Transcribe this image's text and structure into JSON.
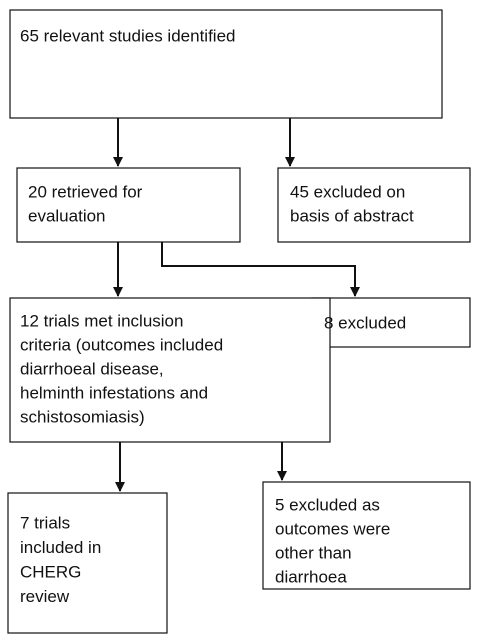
{
  "nodes": [
    {
      "lines": [
        "65 relevant studies identified"
      ]
    },
    {
      "lines": [
        "20 retrieved for",
        "evaluation"
      ]
    },
    {
      "lines": [
        "45 excluded on",
        "basis of abstract"
      ]
    },
    {
      "lines": [
        "8 excluded"
      ]
    },
    {
      "lines": [
        "12 trials met inclusion",
        "criteria (outcomes included",
        "diarrhoeal disease,",
        "helminth infestations and",
        "schistosomiasis)"
      ]
    },
    {
      "lines": [
        "7 trials",
        "included in",
        "CHERG",
        "review"
      ]
    },
    {
      "lines": [
        "5 excluded as",
        "outcomes were",
        "other than",
        "diarrhoea"
      ]
    }
  ]
}
